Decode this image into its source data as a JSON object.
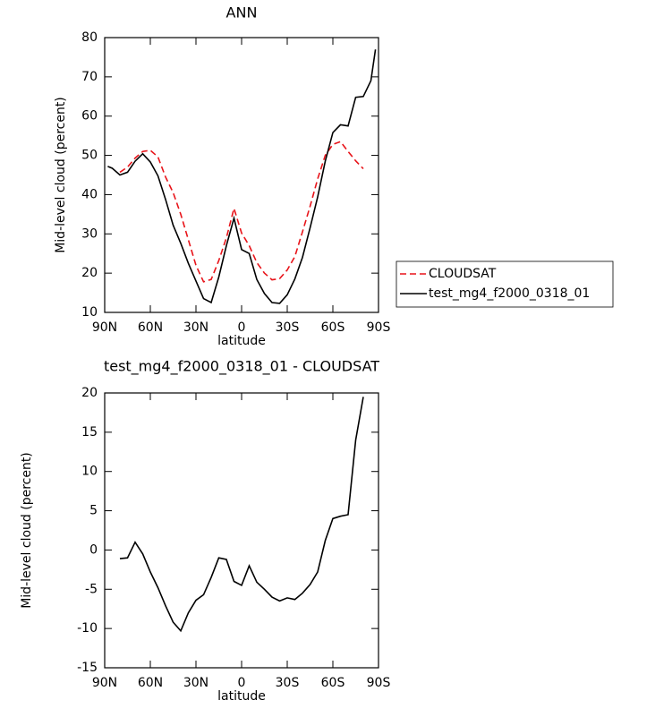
{
  "chart_data": [
    {
      "type": "line",
      "title": "ANN",
      "xlabel": "latitude",
      "ylabel": "Mid-level cloud (percent)",
      "x": [
        88,
        85,
        80,
        75,
        70,
        65,
        60,
        55,
        50,
        45,
        40,
        35,
        30,
        25,
        20,
        15,
        10,
        5,
        0,
        -5,
        -10,
        -15,
        -20,
        -25,
        -30,
        -35,
        -40,
        -45,
        -50,
        -55,
        -60,
        -65,
        -70,
        -75,
        -80,
        -85,
        -88
      ],
      "series": [
        {
          "name": "CLOUDSAT",
          "color": "#e8141a",
          "linestyle": "dashed",
          "values": [
            null,
            null,
            45.7,
            47,
            49.3,
            51,
            51.3,
            49.6,
            44.5,
            40.5,
            35,
            28.5,
            22,
            17.8,
            18.4,
            23.2,
            29,
            36.5,
            30.2,
            27,
            22.7,
            20,
            18.3,
            18.6,
            20.8,
            24.2,
            30.5,
            37,
            44,
            50,
            52.8,
            53.5,
            51,
            48.6,
            46.6,
            null,
            null
          ]
        },
        {
          "name": "test_mg4_f2000_0318_01",
          "color": "#000000",
          "linestyle": "solid",
          "values": [
            47.2,
            46.7,
            45,
            45.7,
            48.5,
            50.4,
            48.3,
            44.8,
            38.8,
            32.2,
            27.6,
            22.5,
            18,
            13.5,
            12.5,
            19,
            27,
            34,
            26,
            25,
            18.4,
            14.8,
            12.5,
            12.3,
            14.5,
            18.5,
            24,
            31.5,
            39.4,
            48.5,
            55.8,
            57.8,
            57.5,
            64.8,
            65,
            69,
            77
          ]
        }
      ],
      "xlim": [
        90,
        -90
      ],
      "xticks": [
        {
          "value": 90,
          "label": "90N"
        },
        {
          "value": 60,
          "label": "60N"
        },
        {
          "value": 30,
          "label": "30N"
        },
        0,
        {
          "value": -30,
          "label": "30S"
        },
        {
          "value": -60,
          "label": "60S"
        },
        {
          "value": -90,
          "label": "90S"
        }
      ],
      "ylim": [
        10,
        80
      ],
      "yticks": [
        10,
        20,
        30,
        40,
        50,
        60,
        70,
        80
      ],
      "legend": "right",
      "grid": false
    },
    {
      "type": "line",
      "title": "test_mg4_f2000_0318_01 - CLOUDSAT",
      "xlabel": "latitude",
      "ylabel": "Mid-level cloud (percent)",
      "x": [
        80,
        75,
        70,
        65,
        60,
        55,
        50,
        45,
        40,
        35,
        30,
        25,
        20,
        15,
        10,
        5,
        0,
        -5,
        -10,
        -15,
        -20,
        -25,
        -30,
        -35,
        -40,
        -45,
        -50,
        -55,
        -60,
        -65,
        -70,
        -75,
        -80
      ],
      "series": [
        {
          "color": "#000000",
          "linestyle": "solid",
          "values": [
            -1.1,
            -1,
            1,
            -0.5,
            -2.8,
            -4.8,
            -7.1,
            -9.2,
            -10.3,
            -8,
            -6.4,
            -5.7,
            -3.5,
            -1,
            -1.2,
            -4,
            -4.5,
            -2,
            -4.1,
            -5,
            -6,
            -6.5,
            -6.1,
            -6.3,
            -5.5,
            -4.4,
            -2.8,
            1.2,
            4,
            4.3,
            4.5,
            14,
            19.5
          ]
        }
      ],
      "xlim": [
        90,
        -90
      ],
      "xticks": [
        {
          "value": 90,
          "label": "90N"
        },
        {
          "value": 60,
          "label": "60N"
        },
        {
          "value": 30,
          "label": "30N"
        },
        0,
        {
          "value": -30,
          "label": "30S"
        },
        {
          "value": -60,
          "label": "60S"
        },
        {
          "value": -90,
          "label": "90S"
        }
      ],
      "ylim": [
        -15,
        20
      ],
      "yticks": [
        -15,
        -10,
        -5,
        0,
        5,
        10,
        15,
        20
      ],
      "grid": false
    }
  ]
}
